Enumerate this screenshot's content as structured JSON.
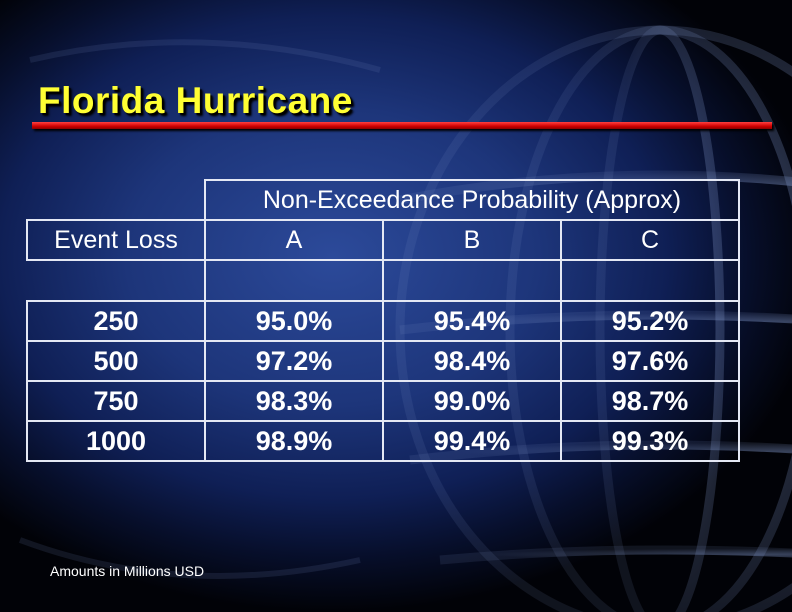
{
  "slide": {
    "title": "Florida Hurricane",
    "footnote": "Amounts in Millions USD"
  },
  "table": {
    "group_header": "Non-Exceedance Probability (Approx)",
    "row_header": "Event Loss",
    "columns": [
      "A",
      "B",
      "C"
    ],
    "rows": [
      {
        "loss": "250",
        "a": "95.0%",
        "b": "95.4%",
        "c": "95.2%"
      },
      {
        "loss": "500",
        "a": "97.2%",
        "b": "98.4%",
        "c": "97.6%"
      },
      {
        "loss": "750",
        "a": "98.3%",
        "b": "99.0%",
        "c": "98.7%"
      },
      {
        "loss": "1000",
        "a": "98.9%",
        "b": "99.4%",
        "c": "99.3%"
      }
    ]
  },
  "colors": {
    "title": "#ffff33",
    "rule": "#d00000",
    "text": "#ffffff",
    "border": "#e4e8f4"
  }
}
